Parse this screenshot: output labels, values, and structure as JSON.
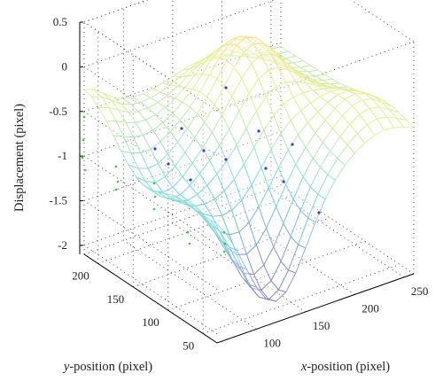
{
  "chart_data": {
    "type": "surface3d",
    "title": "",
    "zlabel": "Displacement (pixel)",
    "xlabel": {
      "var": "x",
      "rest": "-position (pixel)"
    },
    "ylabel": {
      "var": "y",
      "rest": "-position (pixel)"
    },
    "x_range": [
      60,
      260
    ],
    "y_range": [
      30,
      220
    ],
    "z_range": [
      -2.1,
      0.5
    ],
    "x_ticks": [
      "100",
      "150",
      "200",
      "250"
    ],
    "y_ticks": [
      "50",
      "100",
      "150",
      "200"
    ],
    "z_ticks": [
      "0.5",
      "0",
      "-0.5",
      "-1",
      "-1.5",
      "-2"
    ],
    "grid": true,
    "colormap": "pastel (purple-cyan-yellow)",
    "surface_grid": {
      "nx": 21,
      "ny": 19
    },
    "surface_description_points": [
      {
        "x": 60,
        "y": 220,
        "z": -0.1
      },
      {
        "x": 110,
        "y": 30,
        "z": -1.9
      },
      {
        "x": 175,
        "y": 150,
        "z": 0.2
      },
      {
        "x": 260,
        "y": 30,
        "z": -0.9
      }
    ]
  },
  "colors": {
    "axis": "#000000",
    "grid": "#333333",
    "marker_blue": "#3a3ad0",
    "marker_green": "#33cc33"
  }
}
